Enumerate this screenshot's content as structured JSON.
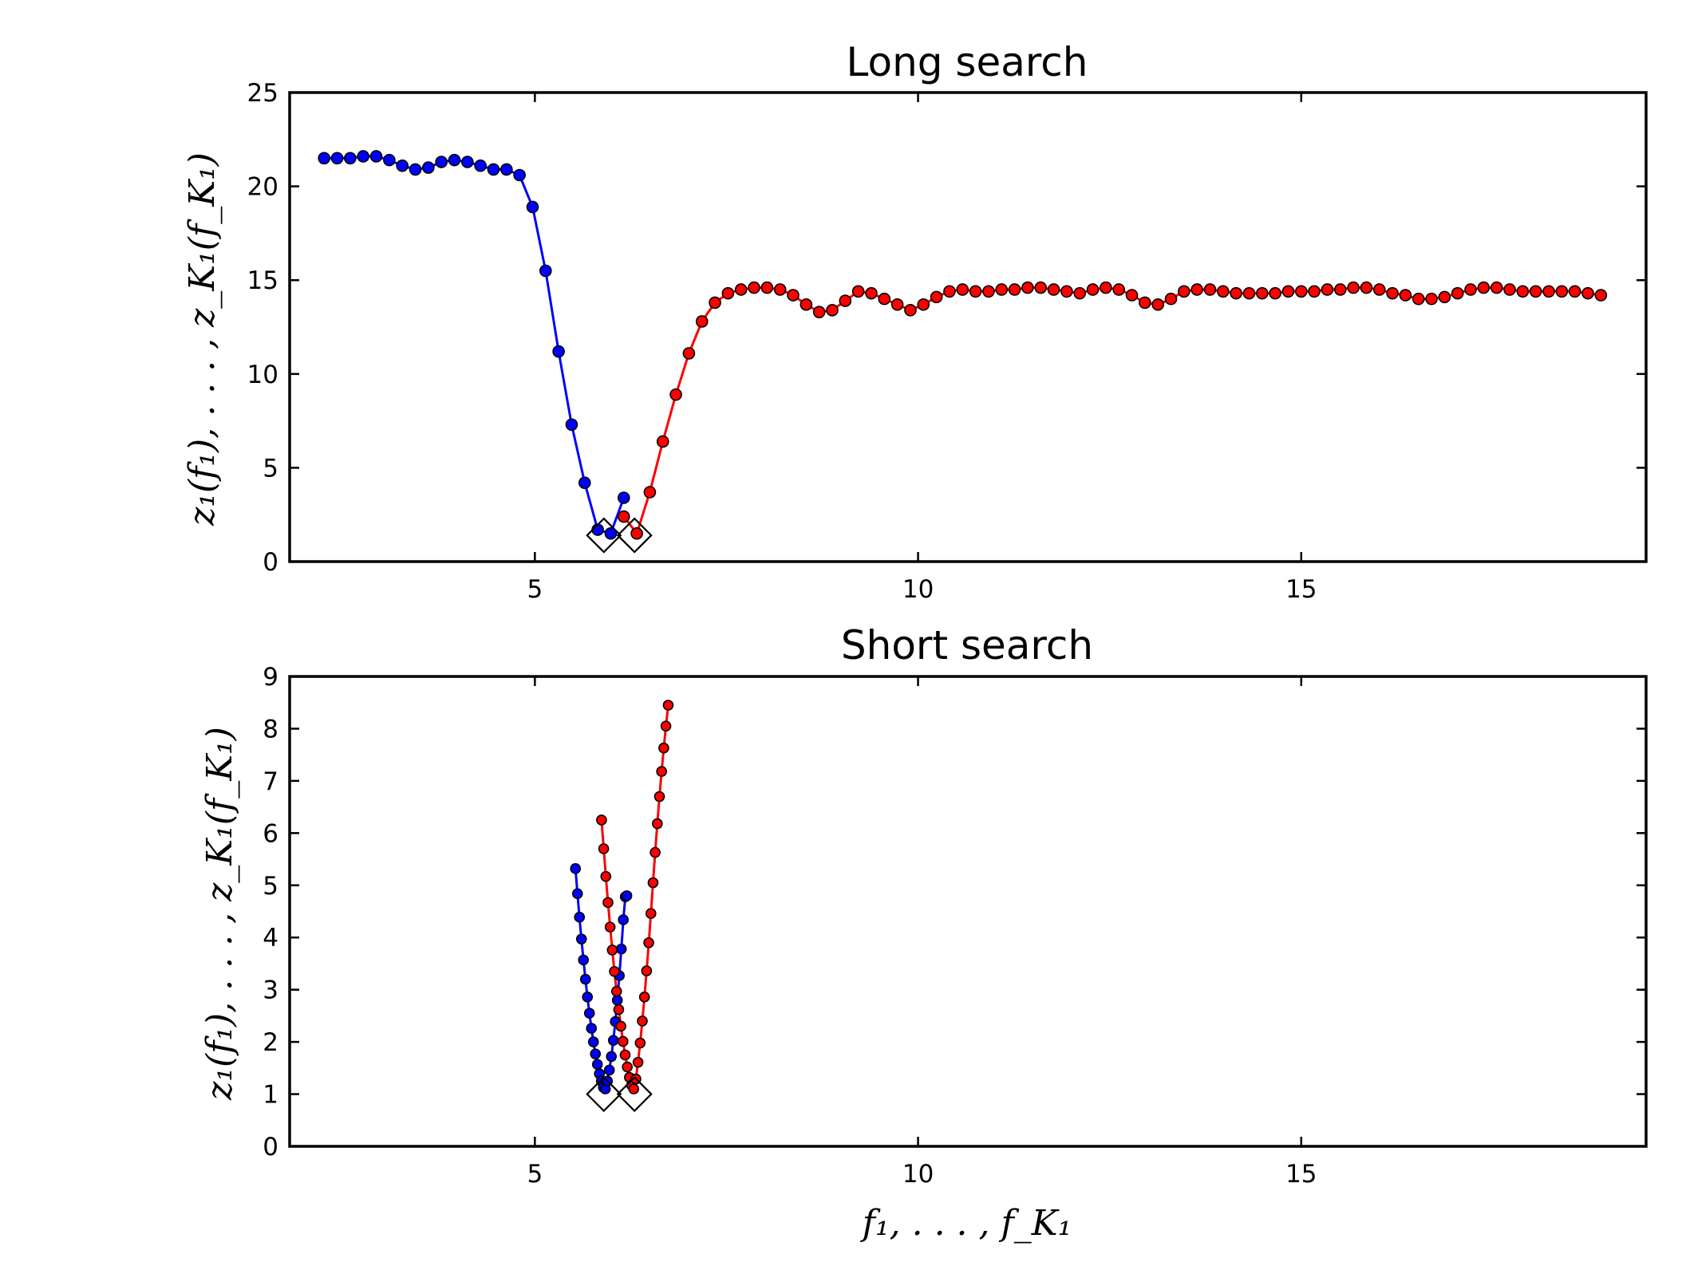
{
  "colors": {
    "blue": "#0000ff",
    "red": "#ff0000",
    "marker_edge": "#000000"
  },
  "chart_data": [
    {
      "type": "line",
      "title": "Long search",
      "xlabel": "",
      "ylabel": "z₁(f₁), . . . , z_K₁(f_K₁)",
      "xlim": [
        1.8,
        19.5
      ],
      "ylim": [
        0,
        25
      ],
      "xticks": [
        "5",
        "10",
        "15"
      ],
      "yticks": [
        "0",
        "5",
        "10",
        "15",
        "20",
        "25"
      ],
      "grid": false,
      "series": [
        {
          "color": "#0000ff",
          "x": [
            2.25,
            2.42,
            2.59,
            2.76,
            2.93,
            3.1,
            3.27,
            3.44,
            3.61,
            3.78,
            3.95,
            4.12,
            4.29,
            4.46,
            4.63,
            4.8,
            4.97,
            5.14,
            5.31,
            5.48,
            5.65,
            5.82,
            5.99,
            6.16
          ],
          "y": [
            21.5,
            21.5,
            21.5,
            21.6,
            21.6,
            21.4,
            21.1,
            20.9,
            21.0,
            21.3,
            21.4,
            21.3,
            21.1,
            20.9,
            20.9,
            20.6,
            18.9,
            15.5,
            11.2,
            7.3,
            4.2,
            1.7,
            1.5,
            3.4
          ]
        },
        {
          "color": "#ff0000",
          "x": [
            6.16,
            6.33,
            6.5,
            6.67,
            6.84,
            7.01,
            7.18,
            7.35,
            7.52,
            7.69,
            7.86,
            8.03,
            8.2,
            8.37,
            8.54,
            8.71,
            8.88,
            9.05,
            9.22,
            9.39,
            9.56,
            9.73,
            9.9,
            10.07,
            10.24,
            10.41,
            10.58,
            10.75,
            10.92,
            11.09,
            11.26,
            11.43,
            11.6,
            11.77,
            11.94,
            12.11,
            12.28,
            12.45,
            12.62,
            12.79,
            12.96,
            13.13,
            13.3,
            13.47,
            13.64,
            13.81,
            13.98,
            14.15,
            14.32,
            14.49,
            14.66,
            14.83,
            15.0,
            15.17,
            15.34,
            15.51,
            15.68,
            15.85,
            16.02,
            16.19,
            16.36,
            16.53,
            16.7,
            16.87,
            17.04,
            17.21,
            17.38,
            17.55,
            17.72,
            17.89,
            18.06,
            18.23,
            18.4,
            18.57,
            18.74,
            18.91
          ],
          "y": [
            2.4,
            1.5,
            3.7,
            6.4,
            8.9,
            11.1,
            12.8,
            13.8,
            14.3,
            14.5,
            14.6,
            14.6,
            14.5,
            14.2,
            13.7,
            13.3,
            13.4,
            13.9,
            14.4,
            14.3,
            14.0,
            13.7,
            13.4,
            13.7,
            14.1,
            14.4,
            14.5,
            14.4,
            14.4,
            14.5,
            14.5,
            14.6,
            14.6,
            14.5,
            14.4,
            14.3,
            14.5,
            14.6,
            14.5,
            14.2,
            13.8,
            13.7,
            14.0,
            14.4,
            14.5,
            14.5,
            14.4,
            14.3,
            14.3,
            14.3,
            14.3,
            14.4,
            14.4,
            14.4,
            14.5,
            14.5,
            14.6,
            14.6,
            14.5,
            14.3,
            14.2,
            14.0,
            14.0,
            14.1,
            14.3,
            14.5,
            14.6,
            14.6,
            14.5,
            14.4,
            14.4,
            14.4,
            14.4,
            14.4,
            14.3,
            14.2
          ]
        }
      ],
      "minima": [
        {
          "x": 5.9,
          "y": 1.4
        },
        {
          "x": 6.3,
          "y": 1.4
        }
      ]
    },
    {
      "type": "line",
      "title": "Short search",
      "xlabel": "f₁, . . . , f_K₁",
      "ylabel": "z₁(f₁), . . . , z_K₁(f_K₁)",
      "xlim": [
        1.8,
        19.5
      ],
      "ylim": [
        0,
        9
      ],
      "xticks": [
        "5",
        "10",
        "15"
      ],
      "yticks": [
        "0",
        "1",
        "2",
        "3",
        "4",
        "5",
        "6",
        "7",
        "8",
        "9"
      ],
      "grid": false,
      "series": [
        {
          "color": "#0000ff",
          "x": [
            5.53,
            5.556,
            5.582,
            5.608,
            5.634,
            5.66,
            5.686,
            5.712,
            5.738,
            5.764,
            5.79,
            5.816,
            5.842,
            5.868,
            5.894,
            5.92,
            5.946,
            5.972,
            5.998,
            6.024,
            6.05,
            6.076,
            6.102,
            6.128,
            6.154,
            6.18,
            6.2
          ],
          "y": [
            5.32,
            4.84,
            4.39,
            3.97,
            3.57,
            3.2,
            2.86,
            2.55,
            2.26,
            2.0,
            1.77,
            1.57,
            1.39,
            1.25,
            1.13,
            1.1,
            1.25,
            1.46,
            1.72,
            2.03,
            2.39,
            2.8,
            3.27,
            3.78,
            4.34,
            4.78,
            4.8
          ]
        },
        {
          "color": "#ff0000",
          "x": [
            5.87,
            5.898,
            5.926,
            5.954,
            5.982,
            6.01,
            6.038,
            6.066,
            6.094,
            6.122,
            6.15,
            6.178,
            6.206,
            6.234,
            6.262,
            6.29,
            6.318,
            6.346,
            6.374,
            6.402,
            6.43,
            6.458,
            6.486,
            6.514,
            6.542,
            6.57,
            6.598,
            6.626,
            6.654,
            6.682,
            6.71,
            6.74
          ],
          "y": [
            6.25,
            5.7,
            5.17,
            4.67,
            4.2,
            3.76,
            3.35,
            2.97,
            2.62,
            2.3,
            2.01,
            1.75,
            1.52,
            1.32,
            1.17,
            1.1,
            1.29,
            1.61,
            1.98,
            2.4,
            2.86,
            3.36,
            3.9,
            4.46,
            5.05,
            5.63,
            6.18,
            6.7,
            7.18,
            7.63,
            8.05,
            8.45
          ]
        }
      ],
      "minima": [
        {
          "x": 5.9,
          "y": 1.0
        },
        {
          "x": 6.3,
          "y": 1.0
        }
      ]
    }
  ]
}
